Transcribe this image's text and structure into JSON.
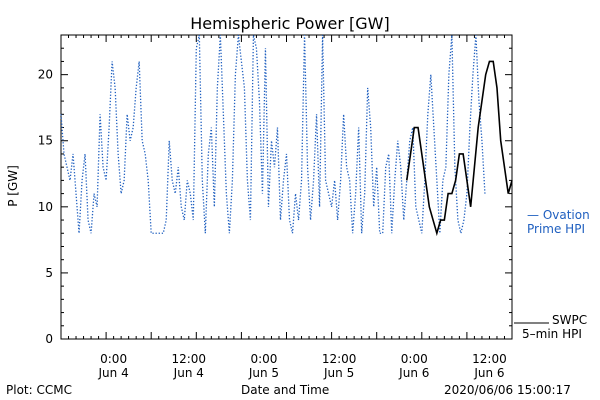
{
  "chart_data": {
    "type": "line",
    "title": "Hemispheric Power [GW]",
    "xlabel": "Date and Time",
    "ylabel": "P [GW]",
    "ylim": [
      0,
      23
    ],
    "yticks": [
      0,
      5,
      10,
      15,
      20
    ],
    "xlim_hours": [
      0,
      60
    ],
    "xtick_labels": [
      {
        "time": "0:00",
        "date": "Jun 4"
      },
      {
        "time": "12:00",
        "date": "Jun 4"
      },
      {
        "time": "0:00",
        "date": "Jun 5"
      },
      {
        "time": "12:00",
        "date": "Jun 5"
      },
      {
        "time": "0:00",
        "date": "Jun 6"
      },
      {
        "time": "12:00",
        "date": "Jun 6"
      }
    ],
    "series": [
      {
        "name": "— Ovation Prime HPI",
        "color": "#2060c0",
        "style": "dotted",
        "values": [
          17,
          14,
          13,
          12,
          14,
          11,
          8,
          12,
          14,
          9,
          8,
          11,
          10,
          17,
          13,
          12,
          16,
          21,
          19,
          14,
          11,
          12,
          17,
          15,
          16,
          19,
          21,
          15,
          14,
          12,
          8,
          8,
          8,
          8,
          8,
          9,
          15,
          12,
          11,
          13,
          10,
          9,
          12,
          11,
          9,
          22,
          23,
          12,
          8,
          14,
          16,
          10,
          19,
          23,
          17,
          11,
          8,
          12,
          20,
          23,
          21,
          19,
          12,
          9,
          23,
          22,
          18,
          11,
          22,
          10,
          15,
          13,
          16,
          9,
          12,
          14,
          9,
          8,
          11,
          9,
          12,
          23,
          13,
          9,
          12,
          17,
          10,
          23,
          12,
          11,
          10,
          12,
          9,
          12,
          17,
          13,
          12,
          8,
          11,
          16,
          8,
          11,
          19,
          16,
          10,
          13,
          8,
          8,
          13,
          14,
          8,
          12,
          15,
          13,
          9,
          12,
          15,
          16,
          10,
          9,
          8,
          12,
          17,
          20,
          16,
          12,
          8,
          12,
          13,
          20,
          23,
          13,
          9,
          8,
          9,
          11,
          16,
          20,
          23,
          18,
          15,
          11
        ],
        "x_start": 0,
        "x_step": 0.4
      },
      {
        "name": "SWPC 5-min HPI",
        "color": "#000000",
        "style": "solid",
        "x": [
          46,
          46.5,
          47,
          47.5,
          48,
          48.5,
          49,
          49.5,
          50,
          50.5,
          51,
          51.5,
          52,
          52.5,
          53,
          53.5,
          54,
          54.5,
          55,
          55.5,
          56,
          56.5,
          57,
          57.5,
          58,
          58.5,
          59,
          59.5,
          60
        ],
        "y": [
          12,
          14,
          16,
          16,
          14,
          12,
          10,
          9,
          8,
          9,
          9,
          11,
          11,
          12,
          14,
          14,
          12,
          10,
          13,
          16,
          18,
          20,
          21,
          21,
          19,
          15,
          13,
          11,
          12
        ]
      }
    ]
  },
  "legend": {
    "ovation_line1": "— Ovation",
    "ovation_line2": "Prime HPI",
    "swpc_line1": "SWPC",
    "swpc_line2": "5–min HPI"
  },
  "footer": {
    "left": "Plot: CCMC",
    "center": "Date and Time",
    "right": "2020/06/06 15:00:17"
  }
}
